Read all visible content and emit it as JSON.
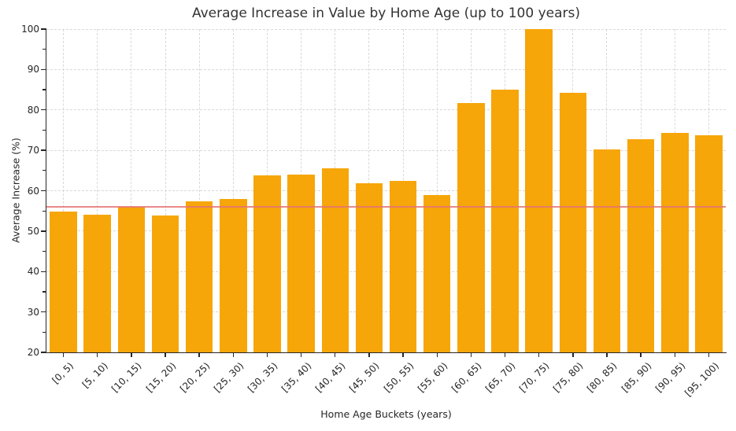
{
  "figure": {
    "title": "Average Increase in Value by Home Age (up to 100 years)",
    "xlabel": "Home Age Buckets (years)",
    "ylabel": "Average Increase (%)"
  },
  "chart_data": {
    "type": "bar",
    "title": "Average Increase in Value by Home Age (up to 100 years)",
    "xlabel": "Home Age Buckets (years)",
    "ylabel": "Average Increase (%)",
    "categories": [
      "[0, 5)",
      "[5, 10)",
      "[10, 15)",
      "[15, 20)",
      "[20, 25)",
      "[25, 30)",
      "[30, 35)",
      "[35, 40)",
      "[40, 45)",
      "[45, 50)",
      "[50, 55)",
      "[55, 60)",
      "[60, 65)",
      "[65, 70)",
      "[70, 75)",
      "[75, 80)",
      "[80, 85)",
      "[85, 90)",
      "[90, 95)",
      "[95, 100)"
    ],
    "values": [
      54.8,
      54.1,
      56.0,
      53.8,
      57.4,
      57.9,
      63.7,
      64.0,
      65.5,
      61.8,
      62.4,
      58.9,
      81.7,
      85.0,
      100.0,
      84.3,
      70.3,
      72.8,
      74.4,
      73.7
    ],
    "reference_line": {
      "value": 56.0,
      "color": "#E57373"
    },
    "ylim": [
      20,
      100
    ],
    "yticks": [
      20,
      30,
      40,
      50,
      60,
      70,
      80,
      90,
      100
    ],
    "ytick_minor_step": 5,
    "xtick_rotation": 45,
    "grid": true,
    "legend_position": "none",
    "bar_color": "#F6A609"
  },
  "colors": {
    "background": "#FFFFFF",
    "bar": "#F6A609",
    "reference_line": "#E57373",
    "grid": "#D9D9D9",
    "spine": "#262626",
    "text": "#262626",
    "title": "#333333"
  }
}
